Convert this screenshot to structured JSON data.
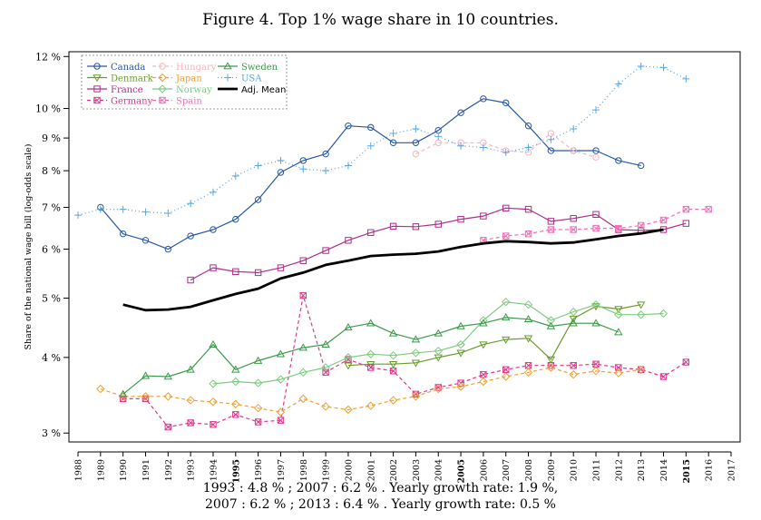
{
  "chart_data": {
    "type": "line",
    "title": "Figure 4. Top 1% wage share in 10 countries.",
    "xlabel": "",
    "ylabel": "Share of the national wage bill (log-odds scale)",
    "y_scale": "log-odds",
    "xlim": [
      1988,
      2017
    ],
    "ylim": [
      2.9,
      12.2
    ],
    "grid": false,
    "legend_position": "top-left",
    "x_ticks": [
      "1988",
      "1989",
      "1990",
      "1991",
      "1992",
      "1993",
      "1994",
      "1995",
      "1996",
      "1997",
      "1998",
      "1999",
      "2000",
      "2001",
      "2002",
      "2003",
      "2004",
      "2005",
      "2006",
      "2007",
      "2008",
      "2009",
      "2010",
      "2011",
      "2012",
      "2013",
      "2014",
      "2015",
      "2016",
      "2017"
    ],
    "x_ticks_bold": [
      "1995",
      "2005",
      "2015"
    ],
    "y_ticks": [
      {
        "value": 3,
        "label": "3 %"
      },
      {
        "value": 4,
        "label": "4 %"
      },
      {
        "value": 5,
        "label": "5 %"
      },
      {
        "value": 6,
        "label": "6 %"
      },
      {
        "value": 7,
        "label": "7 %"
      },
      {
        "value": 8,
        "label": "8 %"
      },
      {
        "value": 9,
        "label": "9 %"
      },
      {
        "value": 10,
        "label": "10 %"
      },
      {
        "value": 12,
        "label": "12 %"
      }
    ],
    "series": [
      {
        "name": "Canada",
        "color": "#2757a3",
        "marker": "circle",
        "dash": "",
        "width": 1.2,
        "x": [
          1989,
          1990,
          1991,
          1992,
          1993,
          1994,
          1995,
          1996,
          1997,
          1998,
          1999,
          2000,
          2001,
          2002,
          2003,
          2004,
          2005,
          2006,
          2007,
          2008,
          2009,
          2010,
          2011,
          2012,
          2013
        ],
        "y": [
          7.0,
          6.35,
          6.2,
          6.0,
          6.3,
          6.45,
          6.7,
          7.2,
          7.95,
          8.3,
          8.5,
          9.4,
          9.35,
          8.85,
          8.85,
          9.25,
          9.85,
          10.35,
          10.2,
          9.4,
          8.6,
          8.6,
          8.6,
          8.3,
          8.15
        ]
      },
      {
        "name": "Denmark",
        "color": "#6a9a2a",
        "marker": "triangle-down",
        "dash": "",
        "width": 1.2,
        "x": [
          2000,
          2001,
          2002,
          2003,
          2004,
          2005,
          2006,
          2007,
          2008,
          2009,
          2010,
          2011,
          2012,
          2013
        ],
        "y": [
          3.88,
          3.9,
          3.9,
          3.92,
          4.0,
          4.07,
          4.2,
          4.28,
          4.3,
          3.97,
          4.63,
          4.85,
          4.8,
          4.88
        ]
      },
      {
        "name": "France",
        "color": "#b02d8a",
        "marker": "square",
        "dash": "",
        "width": 1.2,
        "x": [
          1993,
          1994,
          1995,
          1996,
          1997,
          1998,
          1999,
          2000,
          2001,
          2002,
          2003,
          2004,
          2005,
          2006,
          2007,
          2008,
          2009,
          2010,
          2011,
          2012,
          2013,
          2014,
          2015
        ],
        "y": [
          5.35,
          5.6,
          5.52,
          5.5,
          5.6,
          5.75,
          5.97,
          6.2,
          6.38,
          6.53,
          6.52,
          6.58,
          6.7,
          6.78,
          6.98,
          6.95,
          6.65,
          6.72,
          6.82,
          6.45,
          6.43,
          6.45,
          6.6
        ]
      },
      {
        "name": "Germany",
        "color": "#e0388a",
        "marker": "square-x",
        "dash": "4,3",
        "width": 1.2,
        "x": [
          1990,
          1991,
          1992,
          1993,
          1994,
          1995,
          1996,
          1997,
          1998,
          1999,
          2000,
          2001,
          2002,
          2003,
          2004,
          2005,
          2006,
          2007,
          2008,
          2009,
          2010,
          2011,
          2012,
          2013,
          2014,
          2015
        ],
        "y": [
          3.42,
          3.42,
          3.07,
          3.12,
          3.1,
          3.22,
          3.13,
          3.15,
          5.05,
          3.78,
          3.97,
          3.85,
          3.8,
          3.48,
          3.57,
          3.63,
          3.75,
          3.82,
          3.88,
          3.88,
          3.88,
          3.9,
          3.85,
          3.82,
          3.72,
          3.93
        ]
      },
      {
        "name": "Hungary",
        "color": "#f4b8c0",
        "marker": "circle",
        "dash": "4,3",
        "width": 1.2,
        "x": [
          2003,
          2004,
          2005,
          2006,
          2007,
          2008,
          2009,
          2010,
          2011
        ],
        "y": [
          8.5,
          8.85,
          8.85,
          8.85,
          8.6,
          8.55,
          9.15,
          8.6,
          8.4
        ]
      },
      {
        "name": "Japan",
        "color": "#f0a030",
        "marker": "diamond",
        "dash": "4,3",
        "width": 1.2,
        "x": [
          1989,
          1990,
          1991,
          1992,
          1993,
          1994,
          1995,
          1996,
          1997,
          1998,
          1999,
          2000,
          2001,
          2002,
          2003,
          2004,
          2005,
          2006,
          2007,
          2008,
          2009,
          2010,
          2011,
          2012,
          2013
        ],
        "y": [
          3.55,
          3.45,
          3.45,
          3.45,
          3.4,
          3.38,
          3.35,
          3.3,
          3.25,
          3.42,
          3.32,
          3.28,
          3.33,
          3.4,
          3.45,
          3.55,
          3.58,
          3.65,
          3.72,
          3.78,
          3.85,
          3.75,
          3.8,
          3.77,
          3.82
        ]
      },
      {
        "name": "Norway",
        "color": "#7ccc80",
        "marker": "diamond",
        "dash": "",
        "width": 1.2,
        "x": [
          1994,
          1995,
          1996,
          1997,
          1998,
          1999,
          2000,
          2001,
          2002,
          2003,
          2004,
          2005,
          2006,
          2007,
          2008,
          2009,
          2010,
          2011,
          2012,
          2013,
          2014
        ],
        "y": [
          3.62,
          3.65,
          3.63,
          3.68,
          3.78,
          3.85,
          4.0,
          4.05,
          4.03,
          4.07,
          4.1,
          4.2,
          4.6,
          4.93,
          4.88,
          4.6,
          4.75,
          4.88,
          4.7,
          4.7,
          4.72
        ]
      },
      {
        "name": "Spain",
        "color": "#f070b8",
        "marker": "square-x",
        "dash": "4,3",
        "width": 1.2,
        "x": [
          2006,
          2007,
          2008,
          2009,
          2010,
          2011,
          2012,
          2013,
          2014,
          2015,
          2016
        ],
        "y": [
          6.2,
          6.3,
          6.35,
          6.45,
          6.45,
          6.48,
          6.48,
          6.55,
          6.68,
          6.95,
          6.95
        ]
      },
      {
        "name": "Sweden",
        "color": "#3a9a4a",
        "marker": "triangle-up",
        "dash": "",
        "width": 1.2,
        "x": [
          1990,
          1991,
          1992,
          1993,
          1994,
          1995,
          1996,
          1997,
          1998,
          1999,
          2000,
          2001,
          2002,
          2003,
          2004,
          2005,
          2006,
          2007,
          2008,
          2009,
          2010,
          2011,
          2012
        ],
        "y": [
          3.48,
          3.73,
          3.72,
          3.82,
          4.2,
          3.82,
          3.95,
          4.05,
          4.15,
          4.2,
          4.48,
          4.55,
          4.38,
          4.28,
          4.38,
          4.5,
          4.55,
          4.65,
          4.62,
          4.5,
          4.55,
          4.55,
          4.4
        ]
      },
      {
        "name": "USA",
        "color": "#5aa8e0",
        "marker": "plus",
        "dash": "1,3",
        "width": 1.3,
        "x": [
          1988,
          1989,
          1990,
          1991,
          1992,
          1993,
          1994,
          1995,
          1996,
          1997,
          1998,
          1999,
          2000,
          2001,
          2002,
          2003,
          2004,
          2005,
          2006,
          2007,
          2008,
          2009,
          2010,
          2011,
          2012,
          2013,
          2014,
          2015
        ],
        "y": [
          6.8,
          6.95,
          6.95,
          6.88,
          6.85,
          7.1,
          7.4,
          7.85,
          8.15,
          8.3,
          8.05,
          8.0,
          8.15,
          8.75,
          9.15,
          9.3,
          9.05,
          8.75,
          8.7,
          8.55,
          8.7,
          8.95,
          9.3,
          9.95,
          10.9,
          11.6,
          11.55,
          11.1
        ]
      },
      {
        "name": "Adj. Mean",
        "color": "#000000",
        "marker": "none",
        "dash": "",
        "width": 2.8,
        "x": [
          1990,
          1991,
          1992,
          1993,
          1994,
          1995,
          1996,
          1997,
          1998,
          1999,
          2000,
          2001,
          2002,
          2003,
          2004,
          2005,
          2006,
          2007,
          2008,
          2009,
          2010,
          2011,
          2012,
          2013,
          2014
        ],
        "y": [
          4.88,
          4.78,
          4.79,
          4.84,
          4.96,
          5.08,
          5.18,
          5.38,
          5.5,
          5.66,
          5.75,
          5.85,
          5.88,
          5.9,
          5.95,
          6.05,
          6.13,
          6.18,
          6.16,
          6.13,
          6.15,
          6.22,
          6.3,
          6.36,
          6.45
        ]
      }
    ],
    "legend_columns": [
      [
        "Canada",
        "Denmark",
        "France",
        "Germany"
      ],
      [
        "Hungary",
        "Japan",
        "Norway",
        "Spain"
      ],
      [
        "Sweden",
        "USA",
        "Adj. Mean"
      ]
    ]
  },
  "captions": {
    "line1": "1993 : 4.8 % ; 2007 : 6.2 % . Yearly growth rate: 1.9 %,",
    "line2": "2007 : 6.2 % ; 2013 : 6.4 % . Yearly growth rate: 0.5 %"
  }
}
